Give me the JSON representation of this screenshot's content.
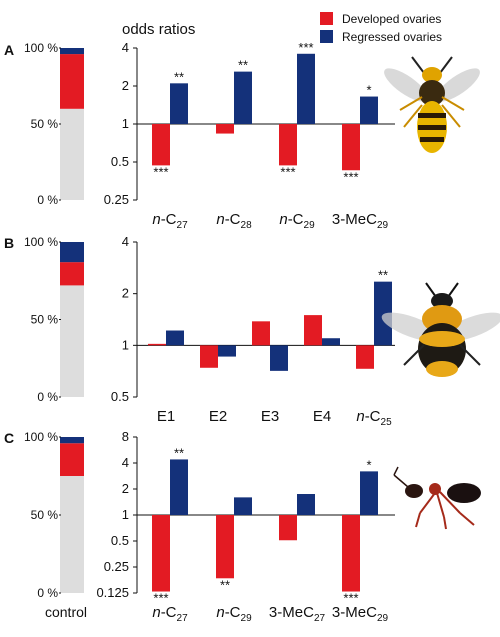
{
  "figure": {
    "ylabel": "odds ratios",
    "legend": [
      {
        "name": "Developed ovaries",
        "color": "#e31b23"
      },
      {
        "name": "Regressed ovaries",
        "color": "#14317a"
      }
    ],
    "control_label": "control",
    "control_colors": {
      "grey": "#dddddd",
      "red": "#e31b23",
      "blue": "#14317a"
    }
  },
  "chart_data": [
    {
      "panel": "A",
      "type": "bar",
      "scale": "log2",
      "ylabel": "odds ratios",
      "yticks": [
        "0.25",
        "0.5",
        "1",
        "2",
        "4"
      ],
      "ylim": [
        0.25,
        4
      ],
      "categories": [
        {
          "base": "n-C",
          "sub": "27"
        },
        {
          "base": "n-C",
          "sub": "28"
        },
        {
          "base": "n-C",
          "sub": "29"
        },
        {
          "base": "3-MeC",
          "sub": "29"
        }
      ],
      "series": [
        {
          "name": "Developed ovaries",
          "values": [
            0.47,
            0.84,
            0.47,
            0.43
          ],
          "sig": [
            "***",
            "",
            "***",
            "***"
          ]
        },
        {
          "name": "Regressed ovaries",
          "values": [
            2.1,
            2.6,
            3.6,
            1.65
          ],
          "sig": [
            "**",
            "**",
            "***",
            "*"
          ]
        }
      ],
      "control": {
        "ticks": [
          "0 %",
          "50 %",
          "100 %"
        ],
        "grey": 0.6,
        "red": 0.36,
        "blue": 0.04
      },
      "picture": "wasp-image"
    },
    {
      "panel": "B",
      "type": "bar",
      "scale": "log2",
      "ylabel": "",
      "yticks": [
        "0.5",
        "1",
        "2",
        "4"
      ],
      "ylim": [
        0.5,
        4
      ],
      "categories": [
        {
          "base": "E1",
          "sub": ""
        },
        {
          "base": "E2",
          "sub": ""
        },
        {
          "base": "E3",
          "sub": ""
        },
        {
          "base": "E4",
          "sub": ""
        },
        {
          "base": "n-C",
          "sub": "25"
        }
      ],
      "series": [
        {
          "name": "Developed ovaries",
          "values": [
            1.02,
            0.74,
            1.38,
            1.5,
            0.73
          ],
          "sig": [
            "",
            "",
            "",
            "",
            ""
          ]
        },
        {
          "name": "Regressed ovaries",
          "values": [
            1.22,
            0.86,
            0.71,
            1.1,
            2.35
          ],
          "sig": [
            "",
            "",
            "",
            "",
            "**"
          ]
        }
      ],
      "control": {
        "ticks": [
          "0 %",
          "50 %",
          "100 %"
        ],
        "grey": 0.72,
        "red": 0.15,
        "blue": 0.13
      },
      "picture": "bumblebee-image"
    },
    {
      "panel": "C",
      "type": "bar",
      "scale": "log2",
      "ylabel": "",
      "yticks": [
        "0.125",
        "0.25",
        "0.5",
        "1",
        "2",
        "4",
        "8"
      ],
      "ylim": [
        0.125,
        8
      ],
      "categories": [
        {
          "base": "n-C",
          "sub": "27"
        },
        {
          "base": "n-C",
          "sub": "29"
        },
        {
          "base": "3-MeC",
          "sub": "27"
        },
        {
          "base": "3-MeC",
          "sub": "29"
        }
      ],
      "series": [
        {
          "name": "Developed ovaries",
          "values": [
            0.13,
            0.185,
            0.51,
            0.13
          ],
          "sig": [
            "***",
            "**",
            "",
            "***"
          ]
        },
        {
          "name": "Regressed ovaries",
          "values": [
            4.4,
            1.6,
            1.75,
            3.2
          ],
          "sig": [
            "**",
            "",
            "",
            "*"
          ]
        }
      ],
      "control": {
        "ticks": [
          "0 %",
          "50 %",
          "100 %"
        ],
        "grey": 0.75,
        "red": 0.21,
        "blue": 0.04
      },
      "picture": "ant-image"
    }
  ]
}
